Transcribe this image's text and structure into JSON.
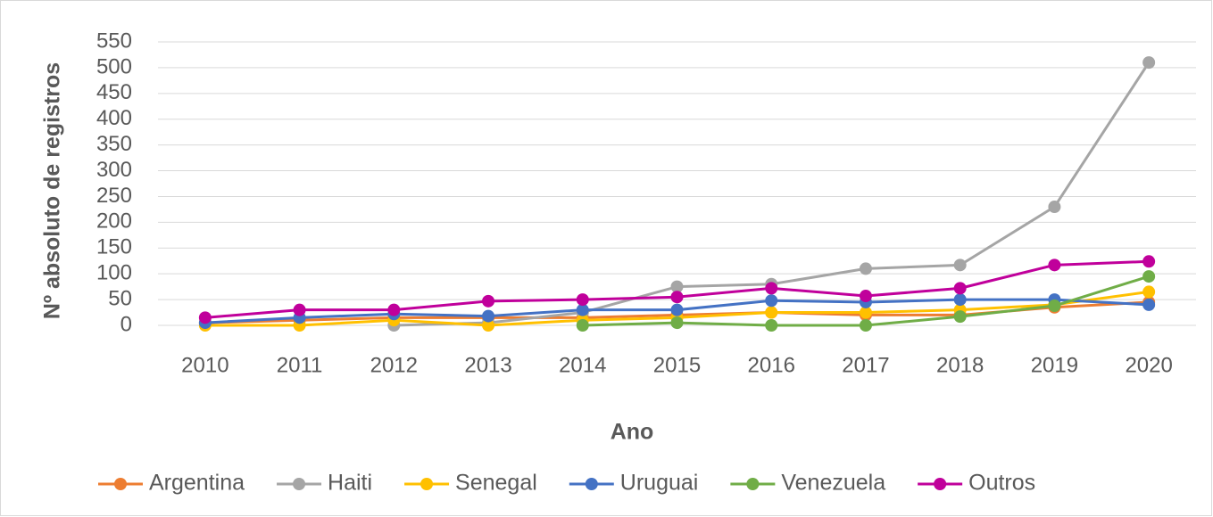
{
  "chart_data": {
    "type": "line",
    "xlabel": "Ano",
    "ylabel": "Nº absoluto de registros",
    "categories": [
      "2010",
      "2011",
      "2012",
      "2013",
      "2014",
      "2015",
      "2016",
      "2017",
      "2018",
      "2019",
      "2020"
    ],
    "series": [
      {
        "name": "Argentina",
        "color": "#ed7d31",
        "values": [
          5,
          10,
          15,
          15,
          15,
          20,
          25,
          20,
          20,
          35,
          45
        ]
      },
      {
        "name": "Haiti",
        "color": "#a5a5a5",
        "values": [
          null,
          null,
          0,
          5,
          25,
          75,
          80,
          110,
          117,
          230,
          510
        ]
      },
      {
        "name": "Senegal",
        "color": "#ffc000",
        "values": [
          0,
          0,
          10,
          0,
          10,
          15,
          25,
          25,
          30,
          40,
          65
        ]
      },
      {
        "name": "Uruguai",
        "color": "#4472c4",
        "values": [
          5,
          15,
          22,
          18,
          30,
          30,
          48,
          45,
          50,
          50,
          40
        ]
      },
      {
        "name": "Venezuela",
        "color": "#70ad47",
        "values": [
          null,
          null,
          null,
          null,
          0,
          5,
          0,
          0,
          17,
          38,
          95
        ]
      },
      {
        "name": "Outros",
        "color": "#c0009b",
        "values": [
          15,
          30,
          30,
          47,
          50,
          55,
          72,
          57,
          72,
          117,
          124
        ]
      }
    ],
    "ylim": [
      0,
      550
    ],
    "yticks": [
      0,
      50,
      100,
      150,
      200,
      250,
      300,
      350,
      400,
      450,
      500,
      550
    ],
    "grid": true,
    "legend": "bottom"
  }
}
